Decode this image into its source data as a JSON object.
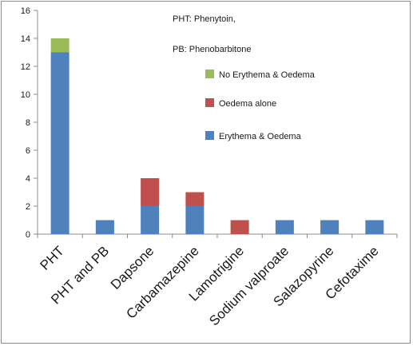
{
  "chart_data": {
    "type": "bar",
    "stacked": true,
    "categories": [
      "PHT",
      "PHT and PB",
      "Dapsone",
      "Carbamazepine",
      "Lamotrigine",
      "Sodium valproate",
      "Salazopyrine",
      "Cefotaxime"
    ],
    "series": [
      {
        "name": "Erythema & Oedema",
        "color": "#4f81bd",
        "values": [
          13,
          1,
          2,
          2,
          0,
          1,
          1,
          1
        ]
      },
      {
        "name": "Oedema alone",
        "color": "#c0504d",
        "values": [
          0,
          0,
          2,
          1,
          1,
          0,
          0,
          0
        ]
      },
      {
        "name": "No Erythema & Oedema",
        "color": "#9bbb59",
        "values": [
          1,
          0,
          0,
          0,
          0,
          0,
          0,
          0
        ]
      }
    ],
    "legend_order": [
      "No Erythema & Oedema",
      "Oedema alone",
      "Erythema & Oedema"
    ],
    "ylim": [
      0,
      16
    ],
    "yticks": [
      0,
      2,
      4,
      6,
      8,
      10,
      12,
      14,
      16
    ],
    "grid": false,
    "legend_position": "right",
    "annotations": [
      "PHT: Phenytoin,",
      "PB: Phenobarbitone"
    ]
  }
}
